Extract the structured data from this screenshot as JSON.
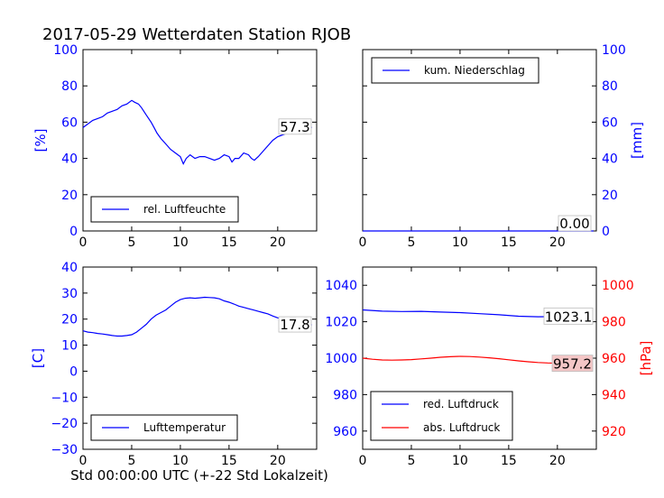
{
  "title": "2017-05-29 Wetterdaten Station RJOB",
  "xlabel": "Std 00:00:00 UTC (+-22 Std Lokalzeit)",
  "chart_data": [
    {
      "type": "line",
      "id": "humidity",
      "ylabel": "[%]",
      "xlim": [
        0,
        24
      ],
      "ylim": [
        0,
        100
      ],
      "xticks": [
        "0",
        "5",
        "10",
        "15",
        "20"
      ],
      "yticks": [
        "0",
        "20",
        "40",
        "60",
        "80",
        "100"
      ],
      "legend": "lower-left",
      "last_value_label": "57.3",
      "series": [
        {
          "name": "rel. Luftfeuchte",
          "color": "#0000ff",
          "x": [
            0,
            0.5,
            1,
            1.5,
            2,
            2.5,
            3,
            3.5,
            4,
            4.5,
            5,
            5.3,
            5.7,
            6,
            6.5,
            7,
            7.3,
            7.6,
            8,
            8.5,
            9,
            9.5,
            10,
            10.3,
            10.6,
            11,
            11.5,
            12,
            12.5,
            13,
            13.5,
            14,
            14.5,
            15,
            15.3,
            15.6,
            16,
            16.5,
            17,
            17.3,
            17.6,
            18,
            18.5,
            19,
            19.5,
            20,
            20.5,
            21,
            21.5,
            22,
            22.5,
            23,
            23.5
          ],
          "y": [
            57,
            59,
            61,
            62,
            63,
            65,
            66,
            67,
            69,
            70,
            72,
            71,
            70,
            68,
            64,
            60,
            57,
            54,
            51,
            48,
            45,
            43,
            41,
            37,
            40,
            42,
            40,
            41,
            41,
            40,
            39,
            40,
            42,
            41,
            38,
            40,
            40,
            43,
            42,
            40,
            39,
            41,
            44,
            47,
            50,
            52,
            53,
            54,
            54,
            55,
            55,
            56,
            57.3
          ]
        }
      ]
    },
    {
      "type": "line",
      "id": "precipitation",
      "ylabel": "[mm]",
      "xlim": [
        0,
        24
      ],
      "ylim": [
        0,
        100
      ],
      "xticks": [
        "0",
        "5",
        "10",
        "15",
        "20"
      ],
      "yticks": [
        "0",
        "20",
        "40",
        "60",
        "80",
        "100"
      ],
      "legend": "upper-left",
      "last_value_label": "0.00",
      "series": [
        {
          "name": "kum. Niederschlag",
          "color": "#0000ff",
          "x": [
            0,
            23.7
          ],
          "y": [
            0,
            0
          ]
        }
      ]
    },
    {
      "type": "line",
      "id": "temperature",
      "ylabel": "[C]",
      "xlim": [
        0,
        24
      ],
      "ylim": [
        -30,
        40
      ],
      "xticks": [
        "0",
        "5",
        "10",
        "15",
        "20"
      ],
      "yticks": [
        "−30",
        "−20",
        "−10",
        "0",
        "10",
        "20",
        "30",
        "40"
      ],
      "legend": "lower-left",
      "last_value_label": "17.8",
      "series": [
        {
          "name": "Lufttemperatur",
          "color": "#0000ff",
          "x": [
            0,
            0.5,
            1,
            1.5,
            2,
            2.5,
            3,
            3.5,
            4,
            4.5,
            5,
            5.5,
            6,
            6.5,
            7,
            7.5,
            8,
            8.5,
            9,
            9.5,
            10,
            10.5,
            11,
            11.5,
            12,
            12.5,
            13,
            13.5,
            14,
            14.5,
            15,
            15.5,
            16,
            16.5,
            17,
            17.5,
            18,
            18.5,
            19,
            19.5,
            20,
            20.5,
            21,
            21.5,
            22,
            22.5,
            23,
            23.5
          ],
          "y": [
            15.5,
            15,
            14.8,
            14.5,
            14.3,
            14,
            13.7,
            13.5,
            13.5,
            13.7,
            14,
            15,
            16.5,
            18,
            20,
            21.5,
            22.5,
            23.5,
            25,
            26.5,
            27.5,
            28,
            28.2,
            28,
            28.2,
            28.4,
            28.3,
            28.2,
            27.8,
            27,
            26.5,
            25.8,
            25,
            24.5,
            24,
            23.5,
            23,
            22.5,
            22,
            21.2,
            20.5,
            20,
            19.5,
            19,
            18.6,
            18.3,
            18,
            17.8
          ]
        }
      ]
    },
    {
      "type": "line",
      "id": "pressure",
      "ylabel": "[hPa]",
      "xlim": [
        0,
        24
      ],
      "ylim_left": [
        950,
        1050
      ],
      "ylim_right": [
        910,
        1010
      ],
      "xticks": [
        "0",
        "5",
        "10",
        "15",
        "20"
      ],
      "yticks_left": [
        "960",
        "980",
        "1000",
        "1020",
        "1040"
      ],
      "yticks_right": [
        "920",
        "940",
        "960",
        "980",
        "1000"
      ],
      "legend": "lower-left",
      "last_value_labels": [
        "1023.1",
        "957.2"
      ],
      "series": [
        {
          "name": "red. Luftdruck",
          "color": "#0000ff",
          "axis": "left",
          "x": [
            0,
            2,
            4,
            6,
            8,
            10,
            12,
            14,
            16,
            18,
            20,
            22,
            23.5
          ],
          "y": [
            1026.5,
            1025.8,
            1025.6,
            1025.7,
            1025.3,
            1025,
            1024.4,
            1023.8,
            1023,
            1022.7,
            1022.8,
            1023,
            1023.1
          ]
        },
        {
          "name": "abs. Luftdruck",
          "color": "#ff0000",
          "axis": "right",
          "x": [
            0,
            1,
            2,
            3,
            4,
            5,
            6,
            7,
            8,
            9,
            10,
            11,
            12,
            13,
            14,
            15,
            16,
            17,
            18,
            19,
            20,
            21,
            22,
            23,
            23.5
          ],
          "y": [
            960,
            959.4,
            959.0,
            958.9,
            959.0,
            959.2,
            959.6,
            960.0,
            960.5,
            960.8,
            961.0,
            960.9,
            960.6,
            960.2,
            959.7,
            959.1,
            958.5,
            958.0,
            957.6,
            957.4,
            957.3,
            957.2,
            957.1,
            957.2,
            957.2
          ]
        }
      ]
    }
  ]
}
